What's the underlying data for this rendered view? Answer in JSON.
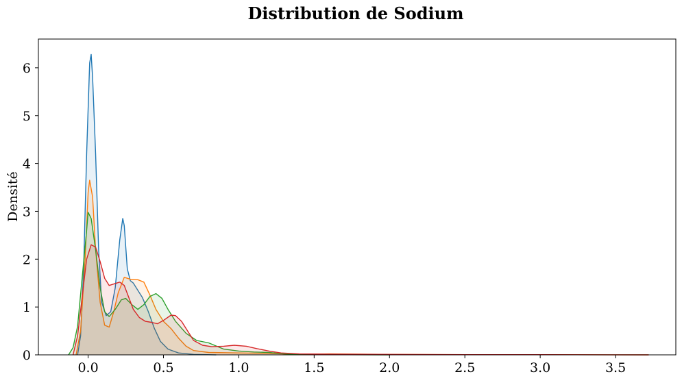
{
  "chart_data": {
    "type": "area",
    "title": "Distribution de Sodium",
    "xlabel": "",
    "ylabel": "Densité",
    "xlim": [
      -0.33,
      3.9
    ],
    "ylim": [
      0,
      6.6
    ],
    "x_ticks": [
      0.0,
      0.5,
      1.0,
      1.5,
      2.0,
      2.5,
      3.0,
      3.5
    ],
    "x_tick_labels": [
      "0.0",
      "0.5",
      "1.0",
      "1.5",
      "2.0",
      "2.5",
      "3.0",
      "3.5"
    ],
    "y_ticks": [
      0,
      1,
      2,
      3,
      4,
      5,
      6
    ],
    "y_tick_labels": [
      "0",
      "1",
      "2",
      "3",
      "4",
      "5",
      "6"
    ],
    "grid": false,
    "legend": "none",
    "fill_opacity": 0.1,
    "series": [
      {
        "color": "#1f77b4",
        "points": [
          [
            -0.07,
            0
          ],
          [
            -0.05,
            0.4
          ],
          [
            -0.03,
            1.8
          ],
          [
            -0.01,
            4.2
          ],
          [
            0.01,
            6.1
          ],
          [
            0.02,
            6.28
          ],
          [
            0.03,
            5.8
          ],
          [
            0.05,
            4.2
          ],
          [
            0.07,
            2.2
          ],
          [
            0.09,
            1.1
          ],
          [
            0.12,
            0.82
          ],
          [
            0.15,
            0.9
          ],
          [
            0.18,
            1.4
          ],
          [
            0.21,
            2.4
          ],
          [
            0.23,
            2.85
          ],
          [
            0.24,
            2.7
          ],
          [
            0.26,
            1.8
          ],
          [
            0.28,
            1.55
          ],
          [
            0.3,
            1.5
          ],
          [
            0.33,
            1.35
          ],
          [
            0.36,
            1.2
          ],
          [
            0.4,
            0.9
          ],
          [
            0.44,
            0.55
          ],
          [
            0.48,
            0.28
          ],
          [
            0.53,
            0.12
          ],
          [
            0.6,
            0.04
          ],
          [
            0.7,
            0.01
          ],
          [
            0.85,
            0
          ]
        ]
      },
      {
        "color": "#ff7f0e",
        "points": [
          [
            -0.08,
            0
          ],
          [
            -0.05,
            0.5
          ],
          [
            -0.02,
            2.0
          ],
          [
            0.0,
            3.4
          ],
          [
            0.01,
            3.65
          ],
          [
            0.03,
            3.3
          ],
          [
            0.05,
            2.2
          ],
          [
            0.08,
            1.1
          ],
          [
            0.11,
            0.62
          ],
          [
            0.14,
            0.58
          ],
          [
            0.17,
            0.9
          ],
          [
            0.2,
            1.3
          ],
          [
            0.24,
            1.62
          ],
          [
            0.28,
            1.58
          ],
          [
            0.33,
            1.57
          ],
          [
            0.37,
            1.52
          ],
          [
            0.41,
            1.25
          ],
          [
            0.45,
            0.95
          ],
          [
            0.5,
            0.7
          ],
          [
            0.55,
            0.55
          ],
          [
            0.6,
            0.35
          ],
          [
            0.65,
            0.18
          ],
          [
            0.7,
            0.09
          ],
          [
            0.8,
            0.05
          ],
          [
            1.0,
            0.04
          ],
          [
            1.2,
            0.03
          ],
          [
            1.4,
            0.01
          ],
          [
            1.6,
            0.02
          ],
          [
            2.0,
            0.01
          ],
          [
            2.5,
            0.005
          ],
          [
            3.0,
            0.005
          ],
          [
            3.72,
            0
          ]
        ]
      },
      {
        "color": "#2ca02c",
        "points": [
          [
            -0.13,
            0
          ],
          [
            -0.1,
            0.15
          ],
          [
            -0.07,
            0.6
          ],
          [
            -0.04,
            1.6
          ],
          [
            -0.01,
            2.6
          ],
          [
            0.0,
            2.98
          ],
          [
            0.02,
            2.85
          ],
          [
            0.05,
            2.2
          ],
          [
            0.08,
            1.4
          ],
          [
            0.11,
            0.9
          ],
          [
            0.14,
            0.8
          ],
          [
            0.18,
            0.95
          ],
          [
            0.22,
            1.15
          ],
          [
            0.25,
            1.18
          ],
          [
            0.29,
            1.05
          ],
          [
            0.33,
            0.95
          ],
          [
            0.37,
            1.05
          ],
          [
            0.41,
            1.22
          ],
          [
            0.45,
            1.28
          ],
          [
            0.49,
            1.18
          ],
          [
            0.53,
            0.95
          ],
          [
            0.58,
            0.7
          ],
          [
            0.65,
            0.45
          ],
          [
            0.72,
            0.3
          ],
          [
            0.8,
            0.25
          ],
          [
            0.9,
            0.12
          ],
          [
            1.0,
            0.08
          ],
          [
            1.1,
            0.06
          ],
          [
            1.2,
            0.05
          ],
          [
            1.3,
            0.02
          ],
          [
            1.4,
            0.01
          ],
          [
            1.6,
            0.005
          ],
          [
            2.0,
            0
          ]
        ]
      },
      {
        "color": "#d62728",
        "points": [
          [
            -0.1,
            0
          ],
          [
            -0.07,
            0.4
          ],
          [
            -0.04,
            1.2
          ],
          [
            -0.01,
            2.0
          ],
          [
            0.02,
            2.3
          ],
          [
            0.05,
            2.25
          ],
          [
            0.08,
            1.95
          ],
          [
            0.11,
            1.6
          ],
          [
            0.14,
            1.45
          ],
          [
            0.17,
            1.48
          ],
          [
            0.21,
            1.52
          ],
          [
            0.24,
            1.45
          ],
          [
            0.27,
            1.2
          ],
          [
            0.3,
            0.95
          ],
          [
            0.34,
            0.78
          ],
          [
            0.38,
            0.7
          ],
          [
            0.42,
            0.68
          ],
          [
            0.46,
            0.65
          ],
          [
            0.5,
            0.72
          ],
          [
            0.55,
            0.83
          ],
          [
            0.58,
            0.82
          ],
          [
            0.62,
            0.7
          ],
          [
            0.66,
            0.5
          ],
          [
            0.7,
            0.3
          ],
          [
            0.76,
            0.2
          ],
          [
            0.82,
            0.17
          ],
          [
            0.9,
            0.18
          ],
          [
            0.97,
            0.2
          ],
          [
            1.05,
            0.18
          ],
          [
            1.12,
            0.13
          ],
          [
            1.2,
            0.08
          ],
          [
            1.28,
            0.04
          ],
          [
            1.4,
            0.02
          ],
          [
            1.6,
            0.015
          ],
          [
            2.0,
            0.01
          ],
          [
            2.5,
            0.005
          ],
          [
            3.0,
            0.005
          ],
          [
            3.72,
            0
          ]
        ]
      }
    ]
  }
}
